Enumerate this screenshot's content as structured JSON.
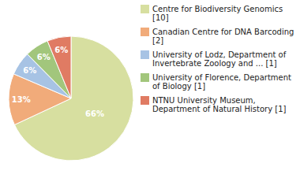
{
  "chart_data": {
    "type": "pie",
    "categories": [
      "Centre for Biodiversity Genomics [10]",
      "Canadian Centre for DNA Barcoding [2]",
      "University of Lodz, Department of Invertebrate Zoology and ... [1]",
      "University of Florence, Department of Biology [1]",
      "NTNU University Museum, Department of Natural History [1]"
    ],
    "values": [
      66,
      13,
      6,
      6,
      6
    ],
    "value_labels": [
      "66%",
      "13%",
      "6%",
      "6%",
      "6%"
    ],
    "colors": [
      "#d7dfa0",
      "#f1ab7a",
      "#a7c3e4",
      "#a2c67c",
      "#e07b63"
    ],
    "data_labels": true,
    "legend": "right"
  }
}
